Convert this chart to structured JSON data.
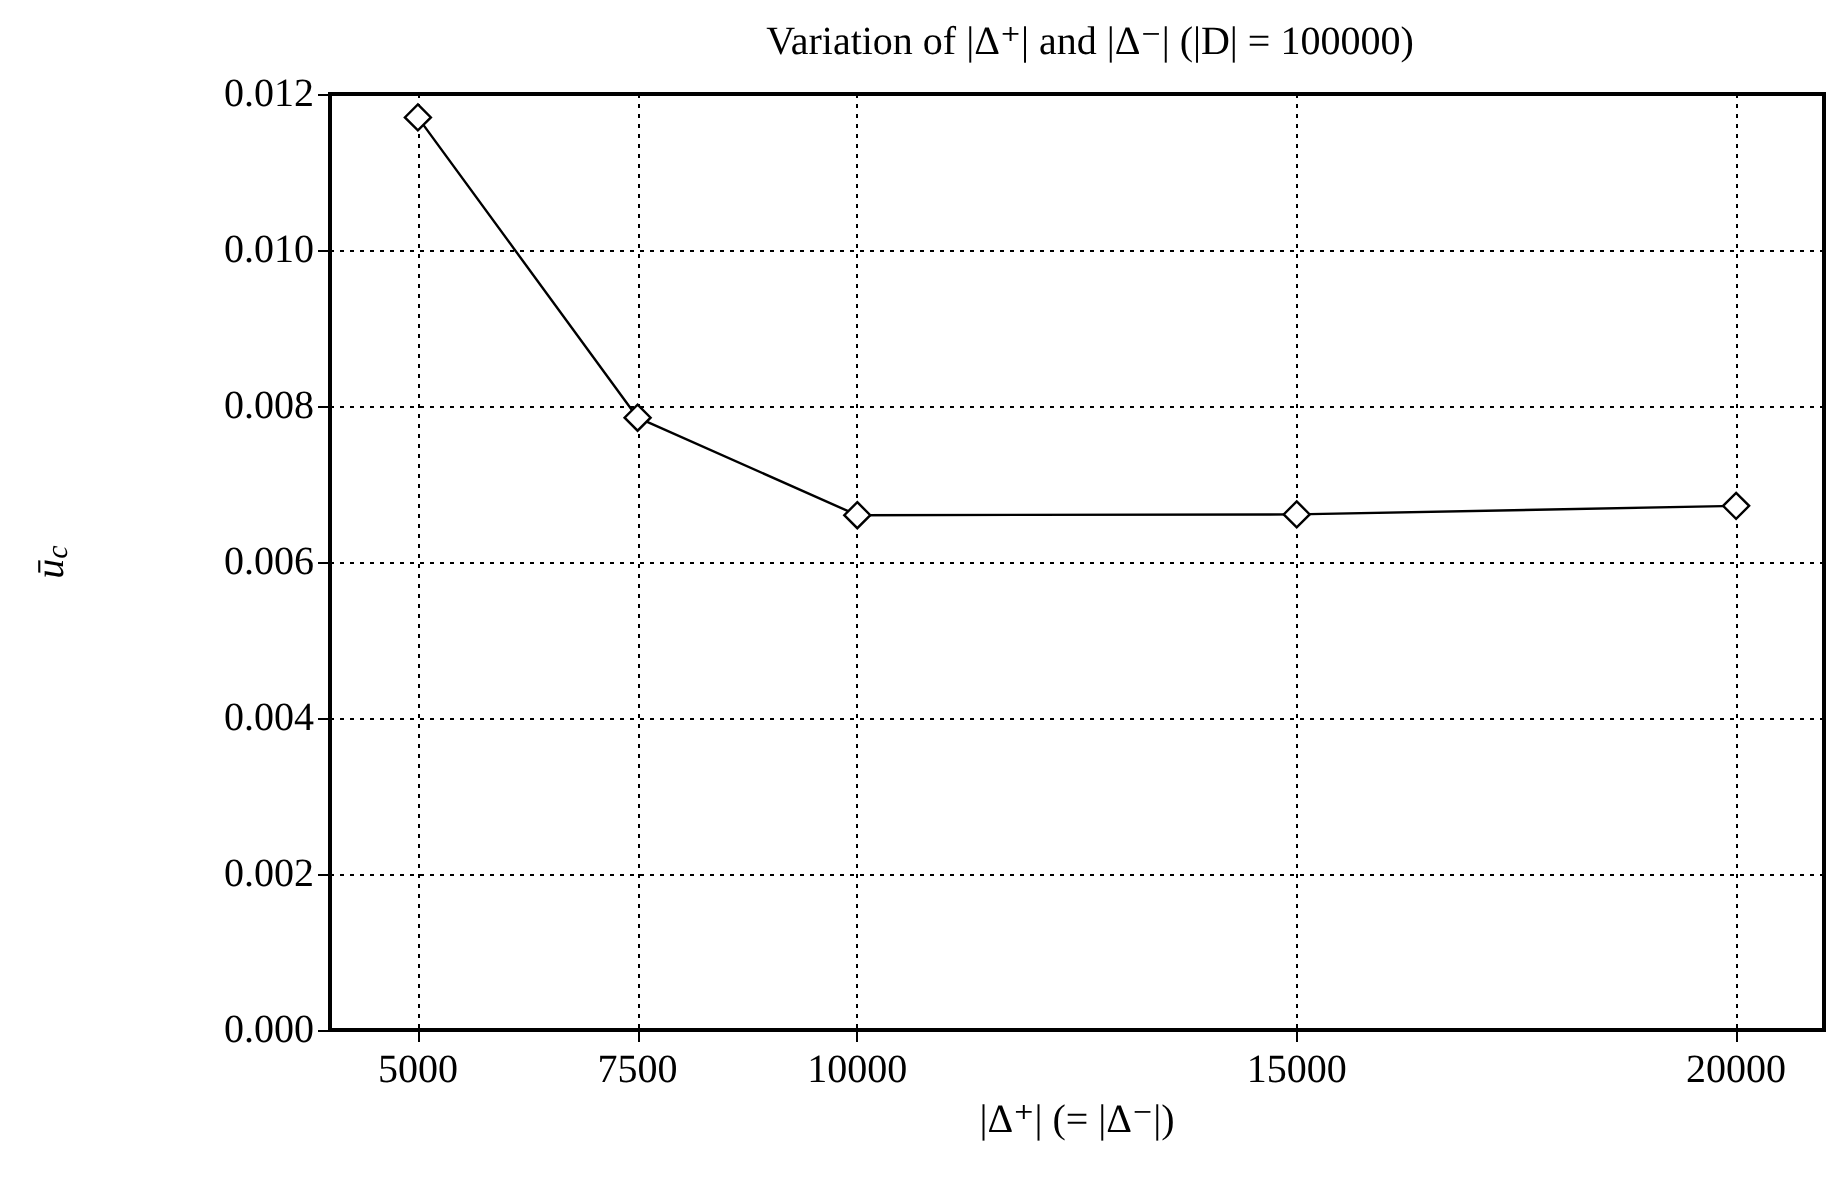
{
  "chart_data": {
    "type": "line",
    "title": "Variation of |Δ⁺| and |Δ⁻| (|D| = 100000)",
    "xlabel": "|Δ⁺| (= |Δ⁻|)",
    "ylabel": "ū$_{c}$",
    "x": [
      5000,
      7500,
      10000,
      15000,
      20000
    ],
    "series": [
      {
        "color": "#000000",
        "values": [
          0.0117,
          0.00785,
          0.0066,
          0.00661,
          0.00672
        ]
      }
    ],
    "xlim": [
      4000,
      21000
    ],
    "xticks": [
      5000,
      7500,
      10000,
      15000,
      20000
    ],
    "ylim": [
      0,
      0.012
    ],
    "yticks": [
      {
        "value": 0,
        "label": "0.000"
      },
      {
        "value": 0.002,
        "label": "0.002"
      },
      {
        "value": 0.004,
        "label": "0.004"
      },
      {
        "value": 0.006,
        "label": "0.006"
      },
      {
        "value": 0.008,
        "label": "0.008"
      },
      {
        "value": 0.01,
        "label": "0.010"
      },
      {
        "value": 0.012,
        "label": "0.012"
      }
    ],
    "grid": true,
    "marker": "diamond",
    "line_style": "solid"
  }
}
